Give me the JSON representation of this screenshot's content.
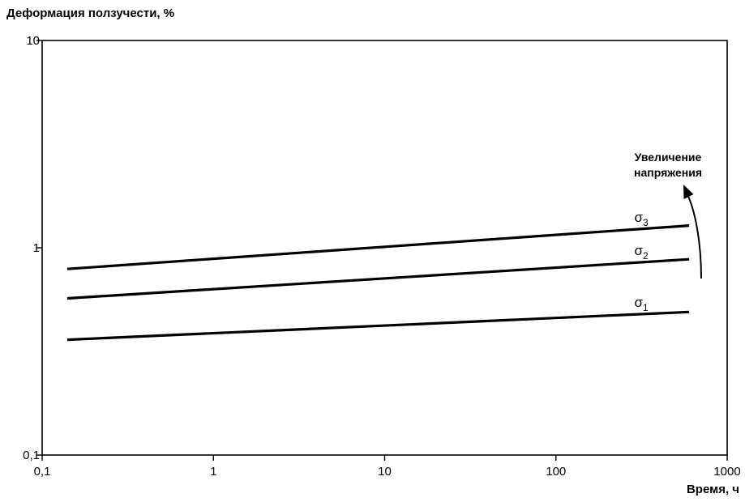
{
  "chart_data": {
    "type": "line",
    "ylabel": "Деформация ползучести, %",
    "xlabel": "Время, ч",
    "x_scale": "log",
    "y_scale": "log",
    "xlim": [
      0.1,
      1000
    ],
    "ylim": [
      0.1,
      10
    ],
    "x_ticks": [
      {
        "value": 0.1,
        "label": "0,1"
      },
      {
        "value": 1,
        "label": "1"
      },
      {
        "value": 10,
        "label": "10"
      },
      {
        "value": 100,
        "label": "100"
      },
      {
        "value": 1000,
        "label": "1000"
      }
    ],
    "y_ticks": [
      {
        "value": 0.1,
        "label": "0,1"
      },
      {
        "value": 1,
        "label": "1"
      },
      {
        "value": 10,
        "label": "10"
      }
    ],
    "grid": false,
    "series": [
      {
        "name": "σ1",
        "symbol": "σ",
        "subscript": "1",
        "x": [
          0.14,
          600
        ],
        "y": [
          0.36,
          0.49
        ]
      },
      {
        "name": "σ2",
        "symbol": "σ",
        "subscript": "2",
        "x": [
          0.14,
          600
        ],
        "y": [
          0.57,
          0.88
        ]
      },
      {
        "name": "σ3",
        "symbol": "σ",
        "subscript": "3",
        "x": [
          0.14,
          600
        ],
        "y": [
          0.79,
          1.28
        ]
      }
    ],
    "annotation": {
      "lines": [
        "Увеличение",
        "напряжения"
      ],
      "arrow": "curved, pointing up"
    },
    "colors": {
      "line": "#000000",
      "background": "#ffffff"
    }
  }
}
